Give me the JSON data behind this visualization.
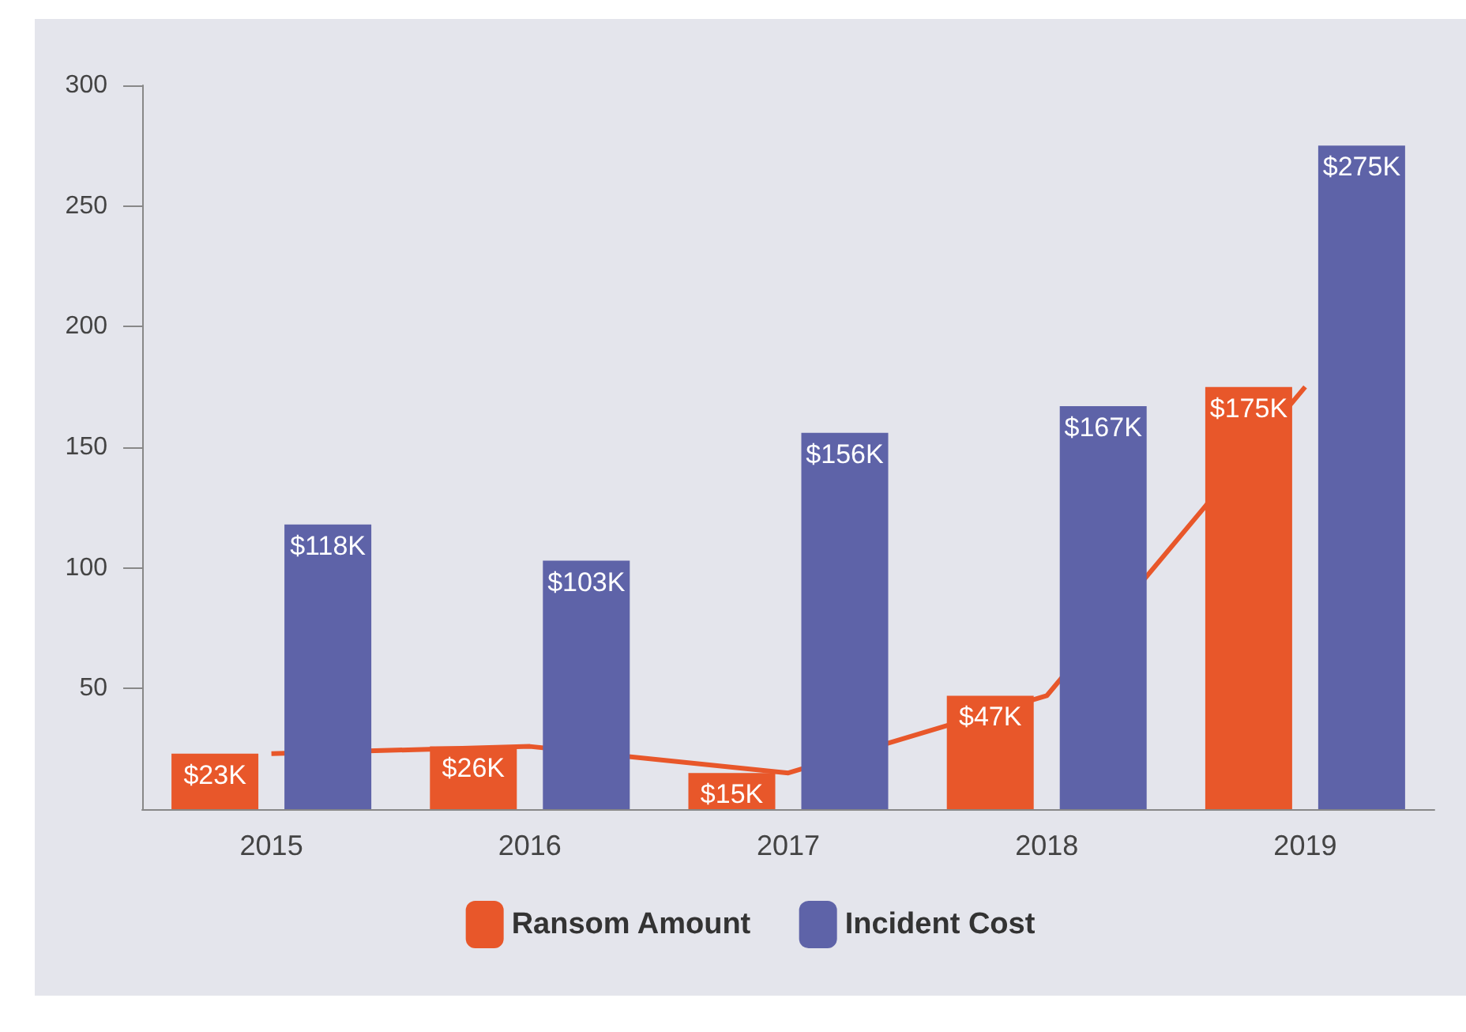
{
  "chart_data": {
    "type": "bar",
    "categories": [
      "2015",
      "2016",
      "2017",
      "2018",
      "2019"
    ],
    "series": [
      {
        "name": "Ransom Amount",
        "color": "#e8572a",
        "values": [
          23,
          26,
          15,
          47,
          175
        ],
        "value_labels": [
          "$23K",
          "$26K",
          "$15K",
          "$47K",
          "$175K"
        ]
      },
      {
        "name": "Incident Cost",
        "color": "#5e63a8",
        "values": [
          118,
          103,
          156,
          167,
          275
        ],
        "value_labels": [
          "$118K",
          "$103K",
          "$156K",
          "$167K",
          "$275K"
        ]
      },
      {
        "type": "line",
        "color": "#e8572a",
        "values": [
          23,
          26,
          15,
          47,
          175
        ],
        "marker": "none"
      }
    ],
    "ylim": [
      0,
      300
    ],
    "yticks": [
      50,
      100,
      150,
      200,
      250,
      300
    ],
    "grid": false,
    "legend": "bottom"
  }
}
